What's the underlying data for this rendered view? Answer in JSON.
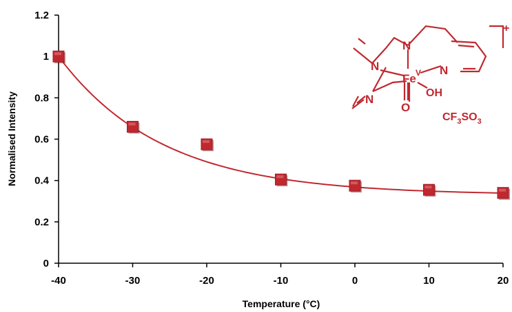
{
  "chart_data": {
    "type": "scatter",
    "title": "",
    "xlabel": "Temperature (°C)",
    "ylabel": "Normalised Intensity",
    "xlim": [
      -40,
      20
    ],
    "ylim": [
      0,
      1.2
    ],
    "x_ticks": [
      -40,
      -30,
      -20,
      -10,
      0,
      10,
      20
    ],
    "y_ticks": [
      0,
      0.2,
      0.4,
      0.6,
      0.8,
      1,
      1.2
    ],
    "x_tick_labels": [
      "-40",
      "-30",
      "-20",
      "-10",
      "0",
      "10",
      "20"
    ],
    "y_tick_labels": [
      "0",
      "0.2",
      "0.4",
      "0.6",
      "0.8",
      "1",
      "1.2"
    ],
    "grid": false,
    "series": [
      {
        "marker": "square",
        "color": "#c0282f",
        "points": [
          {
            "x": -40,
            "y": 1.0
          },
          {
            "x": -30,
            "y": 0.66
          },
          {
            "x": -20,
            "y": 0.575
          },
          {
            "x": -10,
            "y": 0.405
          },
          {
            "x": 0,
            "y": 0.375
          },
          {
            "x": 10,
            "y": 0.355
          },
          {
            "x": 20,
            "y": 0.34
          }
        ]
      }
    ],
    "fit_curve": {
      "type": "exponential",
      "color": "#c0282f",
      "equation": "y = 0.33 + 0.67*exp(-(x+40)/14)"
    },
    "inset_structure": {
      "charge": "+",
      "metal": "Fe",
      "oxidation_state": "V",
      "atoms": [
        "N",
        "N",
        "N",
        "N",
        "O",
        "OH"
      ],
      "counterion_parts": [
        "CF",
        "3",
        "SO",
        "3"
      ],
      "color": "#c0282f"
    }
  }
}
